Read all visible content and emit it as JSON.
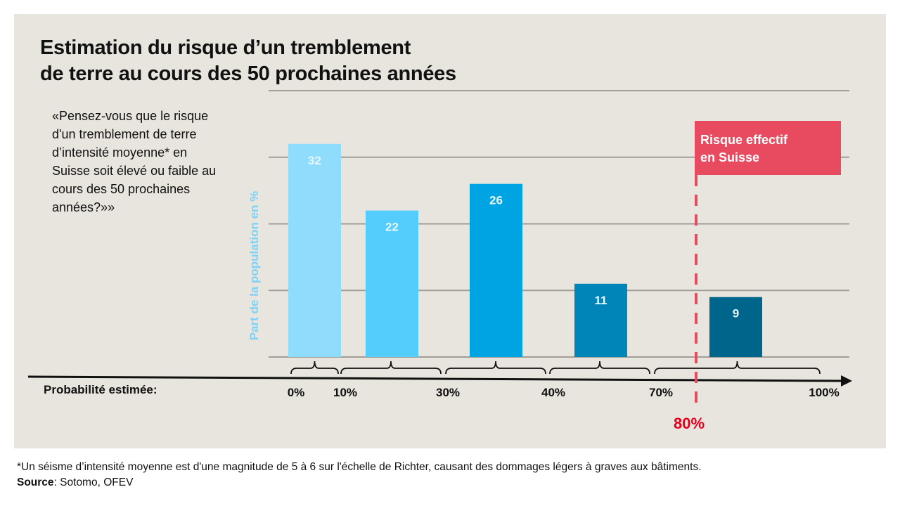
{
  "title_line1": "Estimation du risque d’un tremblement",
  "title_line2": "de terre au cours des 50 prochaines années",
  "question": "«Pensez-vous que le risque d'un tremblement de terre d’intensité moyenne* en Suisse soit élevé ou faible au cours des 50 prochaines années?»»",
  "footnote": "*Un séisme d’intensité moyenne est d'une magnitude de 5 à 6 sur l'échelle de Richter, causant des dommages légers à graves aux bâtiments.",
  "source_label": "Source",
  "source_text": ": Sotomo, OFEV",
  "chart_data": {
    "type": "bar",
    "title": "Estimation du risque d’un tremblement de terre au cours des 50 prochaines années",
    "xlabel": "Probabilité estimée:",
    "ylabel": "Part de la population en %",
    "ylim": [
      0,
      40
    ],
    "grid": true,
    "x_ticks": [
      "0%",
      "10%",
      "30%",
      "40%",
      "70%",
      "100%"
    ],
    "x_tick_values": [
      0,
      10,
      30,
      40,
      70,
      100
    ],
    "categories": [
      "0%–10%",
      "10%–30%",
      "30%–40%",
      "40%–70%",
      "70%–100%"
    ],
    "values": [
      32,
      22,
      26,
      11,
      9
    ],
    "colors": [
      "#8fdcfc",
      "#55cdfc",
      "#00a4e2",
      "#0085b8",
      "#00658a"
    ],
    "annotation": {
      "label_line1": "Risque effectif",
      "label_line2": "en Suisse",
      "value_label": "80%",
      "value": 80,
      "color": "#e84a5f"
    }
  }
}
